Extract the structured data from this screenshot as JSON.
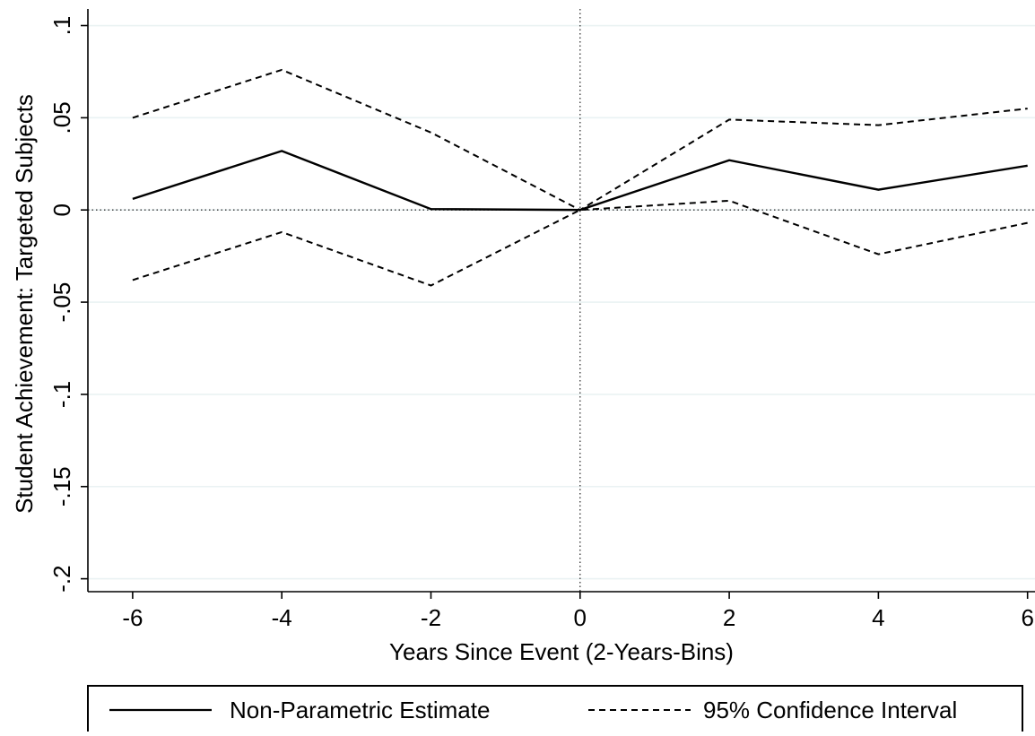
{
  "chart_data": {
    "type": "line",
    "xlabel": "Years Since Event (2-Years-Bins)",
    "ylabel": "Student Achievement: Targeted Subjects",
    "x": [
      -6,
      -4,
      -2,
      0,
      2,
      4,
      6
    ],
    "xticks": [
      -6,
      -4,
      -2,
      0,
      2,
      4,
      6
    ],
    "xtick_labels": [
      "-6",
      "-4",
      "-2",
      "0",
      "2",
      "4",
      "6"
    ],
    "yticks": [
      -0.2,
      -0.15,
      -0.1,
      -0.05,
      0,
      0.05,
      0.1
    ],
    "ytick_labels": [
      "-.2",
      "-.15",
      "-.1",
      "-.05",
      "0",
      ".05",
      ".1"
    ],
    "xlim": [
      -6.6,
      6.1
    ],
    "ylim": [
      -0.207,
      0.109
    ],
    "grid": true,
    "reference_lines": {
      "x": 0,
      "y": 0
    },
    "legend_position": "bottom",
    "series": [
      {
        "name": "Non-Parametric Estimate",
        "style": "solid",
        "color": "#000000",
        "values": [
          0.006,
          0.032,
          0.0005,
          0,
          0.027,
          0.011,
          0.024
        ]
      },
      {
        "name": "95% Confidence Interval",
        "style": "dashed",
        "color": "#000000",
        "values": [
          0.05,
          0.076,
          0.042,
          0,
          0.049,
          0.046,
          0.055
        ]
      },
      {
        "name": "",
        "style": "dashed",
        "color": "#000000",
        "values": [
          -0.038,
          -0.012,
          -0.041,
          0,
          0.005,
          -0.024,
          -0.007
        ]
      }
    ],
    "colors": {
      "grid": "#eaf2f3",
      "line": "#000000",
      "background": "#ffffff"
    }
  },
  "legend": {
    "items": [
      {
        "label": "Non-Parametric Estimate",
        "style": "solid"
      },
      {
        "label": "95% Confidence Interval",
        "style": "dashed"
      }
    ]
  }
}
